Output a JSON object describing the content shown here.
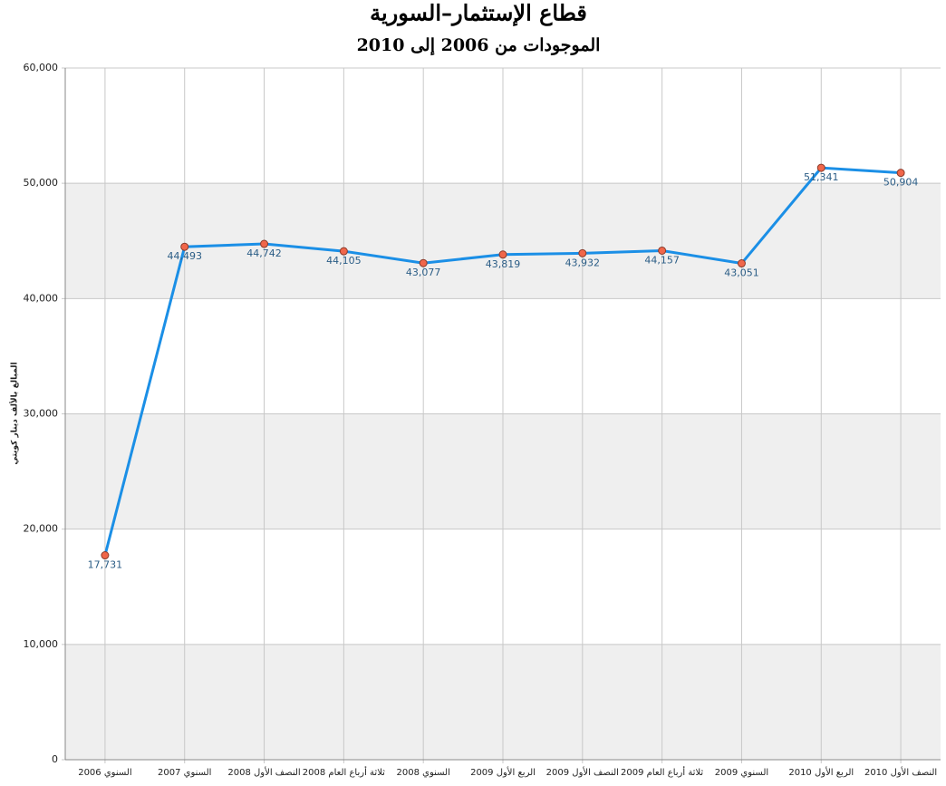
{
  "chart_data": {
    "type": "line",
    "title": "قطاع الإستثمار–السورية",
    "subtitle": "الموجودات من 2006 إلى 2010",
    "y_label": "المبالغ بالألف دينار كويتي",
    "categories": [
      "السنوي 2006",
      "السنوي 2007",
      "النصف الأول 2008",
      "ثلاثة أرباع العام 2008",
      "السنوي 2008",
      "الربع الأول 2009",
      "النصف الأول 2009",
      "ثلاثة أرباع العام 2009",
      "السنوي 2009",
      "الربع الأول 2010",
      "النصف الأول 2010"
    ],
    "series": [
      {
        "color": "#1b8fe6",
        "values": [
          17731,
          44493,
          44742,
          44105,
          43077,
          43819,
          43932,
          44157,
          43051,
          51341,
          50904
        ],
        "value_labels": [
          "17,731",
          "44,493",
          "44,742",
          "44,105",
          "43,077",
          "43,819",
          "43,932",
          "44,157",
          "43,051",
          "51,341",
          "50,904"
        ]
      }
    ],
    "marker_color": "#f0664a",
    "ylim": [
      0,
      60000
    ],
    "yticks": [
      0,
      {
        "value": 10000,
        "label": "10,000"
      },
      {
        "value": 20000,
        "label": "20,000"
      },
      {
        "value": 30000,
        "label": "30,000"
      },
      {
        "value": 40000,
        "label": "40,000"
      },
      {
        "value": 50000,
        "label": "50,000"
      },
      {
        "value": 60000,
        "label": "60,000"
      }
    ],
    "grid": true
  }
}
